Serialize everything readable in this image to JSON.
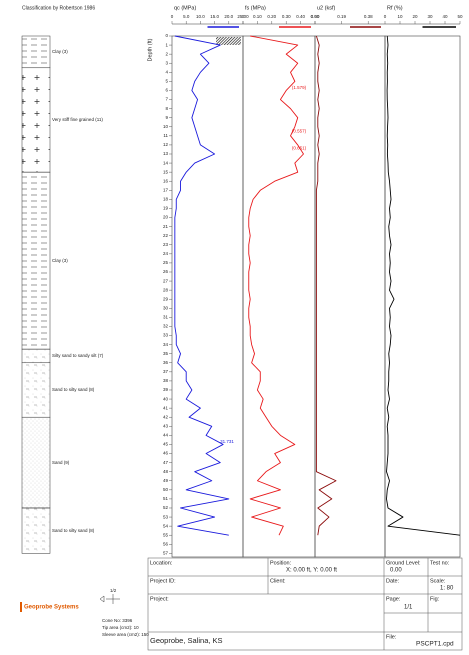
{
  "chart_data": {
    "type": "line",
    "y_label": "Depth (ft)",
    "ylim": [
      0,
      57.4
    ],
    "yticks": [
      0,
      1,
      2,
      3,
      4,
      5,
      6,
      7,
      8,
      9,
      10,
      11,
      12,
      13,
      14,
      15,
      16,
      17,
      18,
      19,
      20,
      21,
      22,
      23,
      24,
      25,
      26,
      27,
      28,
      29,
      30,
      31,
      32,
      33,
      34,
      35,
      36,
      37,
      38,
      39,
      40,
      41,
      42,
      43,
      44,
      45,
      46,
      47,
      48,
      49,
      50,
      51,
      52,
      53,
      54,
      55,
      56,
      57
    ],
    "x": [
      0,
      1,
      2,
      3,
      4,
      5,
      6,
      7,
      8,
      9,
      10,
      11,
      12,
      13,
      14,
      15,
      16,
      17,
      18,
      19,
      20,
      21,
      22,
      23,
      24,
      25,
      26,
      27,
      28,
      29,
      30,
      31,
      32,
      33,
      34,
      35,
      36,
      37,
      38,
      39,
      40,
      41,
      42,
      43,
      44,
      45,
      46,
      47,
      48,
      49,
      50,
      51,
      52,
      53,
      54,
      55
    ],
    "series": [
      {
        "name": "qc (MPa)",
        "color": "#1a1adc",
        "xlim": [
          0,
          25
        ],
        "xticks": [
          0,
          {
            "value": 5,
            "label": "5.0"
          },
          {
            "value": 10,
            "label": "10.0"
          },
          {
            "value": 15,
            "label": "15.0"
          },
          {
            "value": 20,
            "label": "20.0"
          },
          {
            "value": 25,
            "label": "25.00"
          }
        ],
        "values": [
          1,
          17,
          10,
          13,
          10,
          8,
          7,
          9,
          8,
          7,
          8,
          9,
          10,
          15,
          8,
          5,
          3,
          3,
          1.5,
          1.5,
          1,
          1,
          1,
          1,
          1,
          1,
          1,
          1,
          1,
          1,
          1,
          1,
          1,
          1.5,
          1.5,
          3,
          2,
          5,
          5,
          7,
          5,
          10,
          6,
          14,
          12,
          18,
          12,
          17,
          8,
          14,
          5,
          20,
          3,
          15,
          2,
          20
        ],
        "annotations": [
          {
            "value": 31.731,
            "x": 44.7
          }
        ]
      },
      {
        "name": "fs (MPa)",
        "color": "#e8191b",
        "xlim": [
          0,
          0.5
        ],
        "xticks": [
          0,
          {
            "value": 0.1,
            "label": "0.10"
          },
          {
            "value": 0.2,
            "label": "0.20"
          },
          {
            "value": 0.3,
            "label": "0.30"
          },
          {
            "value": 0.4,
            "label": "0.40"
          },
          {
            "value": 0.5,
            "label": "0.50"
          }
        ],
        "values": [
          0.05,
          0.38,
          0.3,
          0.38,
          0.33,
          0.36,
          0.3,
          0.26,
          0.33,
          0.38,
          0.36,
          0.33,
          0.38,
          0.42,
          0.36,
          0.38,
          0.22,
          0.12,
          0.07,
          0.05,
          0.04,
          0.04,
          0.05,
          0.04,
          0.04,
          0.05,
          0.04,
          0.04,
          0.04,
          0.05,
          0.04,
          0.04,
          0.05,
          0.05,
          0.06,
          0.08,
          0.06,
          0.12,
          0.12,
          0.1,
          0.14,
          0.12,
          0.16,
          0.2,
          0.26,
          0.36,
          0.22,
          0.26,
          0.16,
          0.1,
          0.26,
          0.05,
          0.26,
          0.06,
          0.28,
          0.25
        ],
        "annotations": [
          {
            "value": 1.579,
            "label": "(1.579)",
            "x": 5.7
          },
          {
            "value": 0.557,
            "label": "(0.557)",
            "x": 10.5
          },
          {
            "value": 0.651,
            "label": "(0.651)",
            "x": 12.4
          }
        ]
      },
      {
        "name": "u2 (ksf)",
        "color": "#8b0a0a",
        "xlim": [
          0,
          0.5
        ],
        "xticks": [
          {
            "value": 0,
            "label": "0.00"
          },
          0.19,
          0.38
        ],
        "values": [
          0.01,
          0.03,
          0.02,
          0.03,
          0.02,
          0.02,
          0.03,
          0.02,
          0.03,
          0.02,
          0.02,
          0.03,
          0.02,
          0.03,
          0.02,
          0.02,
          0.02,
          0.01,
          0.01,
          0.01,
          0.01,
          0.01,
          0.01,
          0.01,
          0.01,
          0.01,
          0.01,
          0.01,
          0.01,
          0.01,
          0.01,
          0.01,
          0.01,
          0.01,
          0.01,
          0.01,
          0.01,
          0.01,
          0.01,
          0.01,
          0.01,
          0.01,
          0.01,
          0.01,
          0.01,
          0.01,
          0.01,
          0.01,
          0.01,
          0.15,
          0.03,
          0.12,
          0.02,
          0.1,
          0.03,
          0.02
        ]
      },
      {
        "name": "Rf (%)",
        "color": "#000000",
        "xlim": [
          0,
          50
        ],
        "xticks": [
          0,
          10,
          20,
          30,
          40,
          50
        ],
        "values": [
          1.5,
          2,
          1.5,
          1.8,
          1.5,
          1.6,
          1.4,
          1.5,
          1.8,
          2,
          1.7,
          1.5,
          1.8,
          1.6,
          2,
          2.2,
          3,
          3.5,
          4,
          3,
          3.5,
          2.5,
          3,
          4,
          3,
          3.5,
          3,
          4,
          3,
          6,
          3,
          3.5,
          3,
          4,
          3.5,
          2.5,
          3,
          2.5,
          2.5,
          2,
          3,
          1.5,
          2.5,
          1.5,
          2,
          2,
          2,
          1.5,
          1,
          3,
          1.5,
          1,
          2,
          12,
          2,
          50
        ]
      }
    ]
  },
  "classification": {
    "title": "Classification by Robertson 1986",
    "layers": [
      {
        "label": "Clay (3)",
        "top": 0,
        "bottom": 3.5,
        "pattern": "clay"
      },
      {
        "label": "Very stiff fine grained (11)",
        "top": 3.5,
        "bottom": 15,
        "pattern": "plus"
      },
      {
        "label": "Clay (3)",
        "top": 15,
        "bottom": 34.5,
        "pattern": "clay"
      },
      {
        "label": "Silty sand to sandy silt (7)",
        "top": 34.5,
        "bottom": 36,
        "pattern": "silt"
      },
      {
        "label": "Sand to silty sand (8)",
        "top": 36,
        "bottom": 42,
        "pattern": "silt"
      },
      {
        "label": "Sand (9)",
        "top": 42,
        "bottom": 52,
        "pattern": "sand"
      },
      {
        "label": "Sand to silty sand (8)",
        "top": 52,
        "bottom": 57,
        "pattern": "silt"
      }
    ]
  },
  "footer": {
    "logo": "Geoprobe Systems",
    "scale_icon": "1/2",
    "cone": "Cone No: 3396",
    "tip": "Tip area (cm2): 10",
    "sleeve": "Sleeve area (cm2): 150",
    "location": "Location:",
    "position": "Position:",
    "position_value": "X: 0.00 ft, Y: 0.00 ft",
    "ground": "Ground Level:",
    "ground_value": "0.00",
    "test": "Test no:",
    "project_id": "Project ID:",
    "client": "Client:",
    "date": "Date:",
    "scale": "Scale:",
    "scale_value": "1: 80",
    "project": "Project:",
    "page": "Page:",
    "page_value": "1/1",
    "fig": "Fig:",
    "project_value": "Geoprobe, Salina, KS",
    "file": "File:",
    "file_value": "PSCPT1.cpd"
  }
}
